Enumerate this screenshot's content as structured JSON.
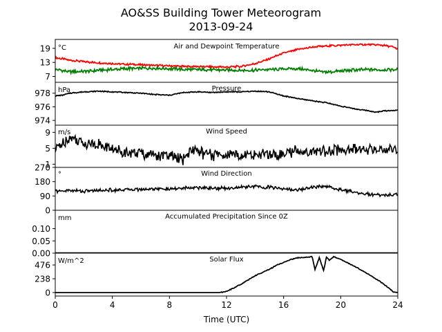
{
  "figure": {
    "title": "AO&SS Building Tower Meteorogram",
    "subtitle": "2013-09-24",
    "xlabel": "Time (UTC)"
  },
  "chart_data": [
    {
      "type": "line",
      "title": "Air and Dewpoint Temperature",
      "ylabel": "°C",
      "yticks": [
        7,
        13,
        19
      ],
      "ylim": [
        4.5,
        22.8
      ],
      "xlim": [
        0,
        24
      ],
      "series": [
        {
          "name": "",
          "color": "#ff0000",
          "x": [
            0,
            0.5,
            1,
            2,
            3,
            4,
            5,
            6,
            7,
            8,
            9,
            10,
            11,
            12,
            13,
            14,
            15,
            16,
            17,
            18,
            19,
            20,
            21,
            22,
            23,
            23.5,
            24
          ],
          "y": [
            15,
            14.5,
            14,
            13.3,
            12.8,
            12.5,
            12.2,
            12,
            11.7,
            11.5,
            11.3,
            11.2,
            11.1,
            11,
            11.3,
            12.5,
            14.5,
            17,
            18.5,
            19.5,
            20,
            20.3,
            20.6,
            20.6,
            20.3,
            19.8,
            18.8
          ]
        },
        {
          "name": "",
          "color": "#008000",
          "x": [
            0,
            0.5,
            1,
            2,
            3,
            4,
            5,
            6,
            7,
            8,
            9,
            10,
            11,
            12,
            13,
            14,
            15,
            16,
            17,
            18,
            19,
            20,
            21,
            22,
            23,
            24
          ],
          "y": [
            10,
            9.5,
            9,
            9.2,
            9.6,
            10,
            10.3,
            10.5,
            10.5,
            10.3,
            10,
            9.9,
            9.8,
            9.7,
            9.6,
            9.7,
            10,
            10.2,
            10.3,
            9.5,
            8.8,
            9.3,
            9.8,
            9.9,
            9.8,
            10
          ]
        }
      ]
    },
    {
      "type": "line",
      "title": "Pressure",
      "ylabel": "hPa",
      "yticks": [
        974,
        976,
        978
      ],
      "ylim": [
        973.3,
        979.6
      ],
      "xlim": [
        0,
        24
      ],
      "series": [
        {
          "name": "",
          "color": "#000000",
          "x": [
            0,
            0.5,
            1,
            2,
            3,
            4,
            5,
            6,
            7,
            8,
            9,
            10,
            11,
            12,
            13,
            14,
            15,
            16,
            17,
            18,
            19,
            20,
            21,
            22,
            22.5,
            23,
            24
          ],
          "y": [
            977.6,
            977.7,
            978.0,
            978.2,
            978.3,
            978.2,
            978.1,
            978.0,
            977.8,
            977.7,
            978.1,
            978.2,
            978.1,
            978.2,
            978.2,
            978.3,
            978.2,
            977.6,
            977.2,
            976.9,
            976.6,
            976.1,
            975.7,
            975.4,
            975.2,
            975.4,
            975.5
          ]
        }
      ]
    },
    {
      "type": "line",
      "title": "Wind Speed",
      "ylabel": "m/s",
      "yticks": [
        1,
        5,
        9
      ],
      "ylim": [
        0.2,
        10.8
      ],
      "xlim": [
        0,
        24
      ],
      "series": [
        {
          "name": "",
          "color": "#000000",
          "x": [
            0,
            0.5,
            1,
            2,
            3,
            4,
            5,
            6,
            7,
            8,
            9,
            9.5,
            10,
            11,
            12,
            13,
            14,
            15,
            16,
            17,
            18,
            19,
            20,
            21,
            22,
            23,
            24
          ],
          "y": [
            4.5,
            6.5,
            7.5,
            6.5,
            6,
            4.8,
            4,
            3.8,
            3.5,
            3,
            2.2,
            4.8,
            4,
            3.2,
            3.5,
            3.2,
            3.5,
            3.2,
            3.6,
            4.5,
            4,
            4.6,
            4.5,
            4.8,
            4.5,
            5,
            5
          ]
        }
      ]
    },
    {
      "type": "line",
      "title": "Wind Direction",
      "ylabel": "°",
      "yticks": [
        0,
        90,
        180,
        270
      ],
      "ylim": [
        0,
        270
      ],
      "xlim": [
        0,
        24
      ],
      "series": [
        {
          "name": "",
          "color": "#000000",
          "x": [
            0,
            1,
            2,
            3,
            4,
            5,
            6,
            7,
            8,
            9,
            10,
            11,
            12,
            13,
            14,
            15,
            16,
            17,
            18,
            19,
            20,
            21,
            22,
            23,
            24
          ],
          "y": [
            120,
            125,
            120,
            125,
            128,
            130,
            132,
            135,
            133,
            138,
            143,
            140,
            138,
            145,
            150,
            145,
            135,
            128,
            145,
            148,
            130,
            115,
            100,
            95,
            100
          ]
        }
      ]
    },
    {
      "type": "line",
      "title": "Accumulated Precipitation Since 0Z",
      "ylabel": "mm",
      "yticks": [
        0.0,
        0.05,
        0.1
      ],
      "ylim": [
        0,
        0.175
      ],
      "xlim": [
        0,
        24
      ],
      "series": [
        {
          "name": "",
          "color": "#000000",
          "x": [
            0,
            24
          ],
          "y": [
            0,
            0
          ]
        }
      ]
    },
    {
      "type": "line",
      "title": "Solar Flux",
      "ylabel": "W/m^2",
      "yticks": [
        0,
        238,
        476
      ],
      "ylim": [
        -60,
        680
      ],
      "xlim": [
        0,
        24
      ],
      "series": [
        {
          "name": "",
          "color": "#000000",
          "x": [
            0,
            11.5,
            12,
            13,
            14,
            15,
            15.5,
            16,
            16.5,
            17,
            17.5,
            18,
            18.2,
            18.5,
            18.8,
            19,
            19.2,
            19.5,
            20,
            20.5,
            21,
            22,
            23,
            23.7,
            24
          ],
          "y": [
            0,
            0,
            20,
            140,
            290,
            400,
            470,
            520,
            570,
            600,
            610,
            620,
            400,
            600,
            380,
            610,
            560,
            620,
            570,
            510,
            450,
            310,
            150,
            10,
            0
          ]
        }
      ]
    }
  ],
  "xaxis": {
    "ticks": [
      0,
      4,
      8,
      12,
      16,
      20,
      24
    ]
  }
}
